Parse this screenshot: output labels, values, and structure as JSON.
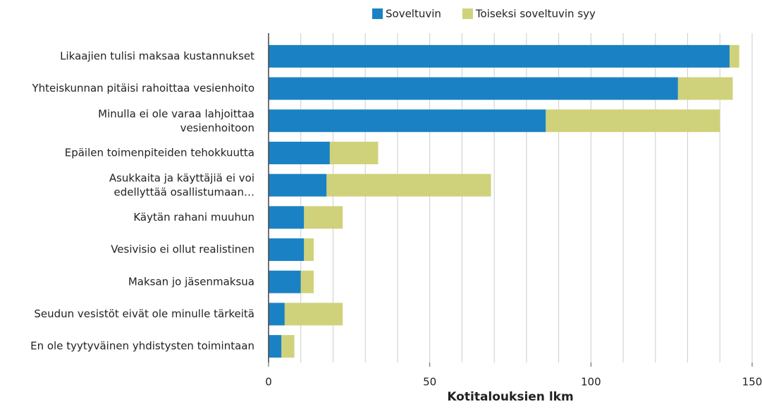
{
  "chart_data": {
    "type": "stacked_barh",
    "xlabel": "Kotitalouksien lkm",
    "categories": [
      "Likaajien tulisi maksaa kustannukset",
      "Yhteiskunnan pitäisi rahoittaa vesienhoito",
      "Minulla ei ole varaa lahjoittaa\nvesienhoitoon",
      "Epäilen toimenpiteiden tehokkuutta",
      "Asukkaita ja käyttäjiä ei voi\nedellyttää osallistumaan…",
      "Käytän rahani muuhun",
      "Vesivisio ei ollut realistinen",
      "Maksan jo jäsenmaksua",
      "Seudun vesistöt eivät ole minulle tärkeitä",
      "En ole tyytyväinen yhdistysten toimintaan"
    ],
    "series": [
      {
        "name": "Soveltuvin",
        "color": "#1a82c4",
        "values": [
          143,
          127,
          86,
          19,
          18,
          11,
          11,
          10,
          5,
          4
        ]
      },
      {
        "name": "Toiseksi soveltuvin syy",
        "color": "#cfd27a",
        "values": [
          3,
          17,
          54,
          15,
          51,
          12,
          3,
          4,
          18,
          4
        ]
      }
    ],
    "xlim": [
      0,
      150
    ],
    "xticks": [
      0,
      50,
      100,
      150
    ],
    "minor_xticks": [
      10,
      20,
      30,
      40,
      60,
      70,
      80,
      90,
      110,
      120,
      130,
      140
    ],
    "grid": true,
    "legend": "top"
  }
}
